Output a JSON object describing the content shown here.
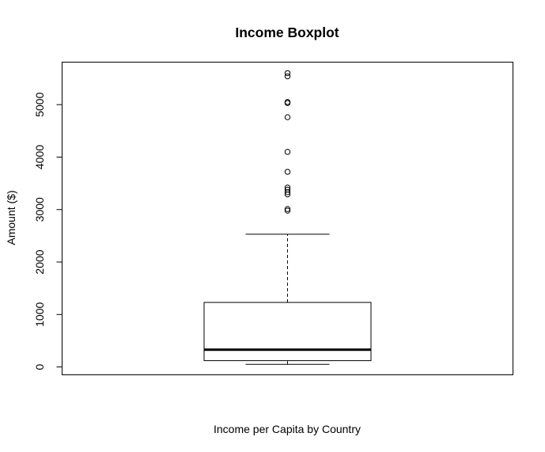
{
  "chart_data": {
    "type": "boxplot",
    "title": "Income Boxplot",
    "xlabel": "Income per Capita by Country",
    "ylabel": "Amount ($)",
    "ylim": [
      -150,
      5810
    ],
    "yticks": [
      0,
      1000,
      2000,
      3000,
      4000,
      5000
    ],
    "grid": false,
    "box": {
      "whisker_low": 50,
      "q1": 120,
      "median": 330,
      "q3": 1230,
      "whisker_high": 2530
    },
    "outliers": [
      2980,
      3010,
      3290,
      3330,
      3380,
      3420,
      3720,
      4100,
      4760,
      5030,
      5050,
      5540,
      5600
    ]
  },
  "colors": {
    "stroke": "#000000",
    "background": "#ffffff"
  }
}
